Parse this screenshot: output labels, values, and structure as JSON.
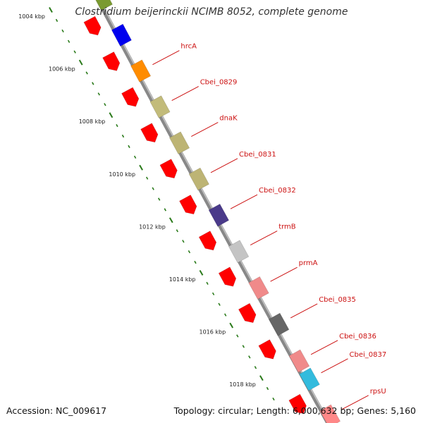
{
  "title": "Clostridium beijerinckii NCIMB 8052, complete genome",
  "footer": {
    "accession": "Accession: NC_009617",
    "summary": "Topology: circular; Length: 6,000,632 bp; Genes: 5,160"
  },
  "colors": {
    "backbone": "#888888",
    "ruler_ticks": "#2a7a1a",
    "label_text": "#cc1111",
    "leader_line": "#cc1111"
  },
  "scale": {
    "unit": "kbp",
    "labels": [
      "1004 kbp",
      "1006 kbp",
      "1008 kbp",
      "1010 kbp",
      "1012 kbp",
      "1014 kbp",
      "1016 kbp",
      "1018 kbp"
    ]
  },
  "genes": [
    {
      "label": "",
      "strand": "forward",
      "color": "#7a9a30"
    },
    {
      "label": "",
      "strand": "reverse",
      "color": "#ff0000"
    },
    {
      "label": "",
      "strand": "forward",
      "color": "#0000ee"
    },
    {
      "label": "",
      "strand": "reverse",
      "color": "#ff0000"
    },
    {
      "label": "hrcA",
      "strand": "forward",
      "color": "#ff8c00"
    },
    {
      "label": "",
      "strand": "reverse",
      "color": "#ff0000"
    },
    {
      "label": "Cbei_0829",
      "strand": "forward",
      "color": "#c2bb7a"
    },
    {
      "label": "",
      "strand": "reverse",
      "color": "#ff0000"
    },
    {
      "label": "dnaK",
      "strand": "forward",
      "color": "#bdb474"
    },
    {
      "label": "",
      "strand": "reverse",
      "color": "#ff0000"
    },
    {
      "label": "Cbei_0831",
      "strand": "forward",
      "color": "#bdb474"
    },
    {
      "label": "",
      "strand": "reverse",
      "color": "#ff0000"
    },
    {
      "label": "Cbei_0832",
      "strand": "forward",
      "color": "#4a3a8a"
    },
    {
      "label": "",
      "strand": "reverse",
      "color": "#ff0000"
    },
    {
      "label": "trmB",
      "strand": "forward",
      "color": "#c4c4c4"
    },
    {
      "label": "",
      "strand": "reverse",
      "color": "#ff0000"
    },
    {
      "label": "prmA",
      "strand": "forward",
      "color": "#f08a8a"
    },
    {
      "label": "",
      "strand": "reverse",
      "color": "#ff0000"
    },
    {
      "label": "Cbei_0835",
      "strand": "forward",
      "color": "#666666"
    },
    {
      "label": "",
      "strand": "reverse",
      "color": "#ff0000"
    },
    {
      "label": "Cbei_0836",
      "strand": "forward",
      "color": "#f08a8a"
    },
    {
      "label": "Cbei_0837",
      "strand": "forward",
      "color": "#33bbdd"
    },
    {
      "label": "",
      "strand": "reverse",
      "color": "#ff0000"
    },
    {
      "label": "rpsU",
      "strand": "forward",
      "color": "#ff8888"
    }
  ]
}
